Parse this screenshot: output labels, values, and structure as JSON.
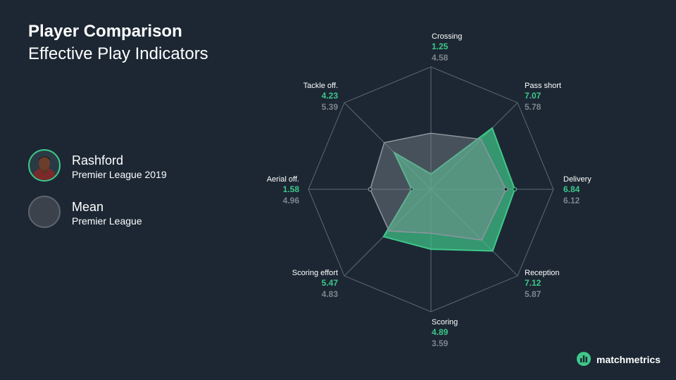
{
  "title": "Player Comparison",
  "subtitle": "Effective Play Indicators",
  "legend": {
    "player": {
      "name": "Rashford",
      "desc": "Premier League 2019"
    },
    "mean": {
      "name": "Mean",
      "desc": "Premier League"
    }
  },
  "brand": {
    "name": "matchmetrics",
    "icon": "matchmetrics-logo-icon"
  },
  "colors": {
    "player": "#3fc78a",
    "mean": "#8a9099",
    "background": "#1c2733"
  },
  "chart_data": {
    "type": "radar",
    "title": "Effective Play Indicators",
    "axes": [
      "Crossing",
      "Pass short",
      "Delivery",
      "Reception",
      "Scoring",
      "Scoring effort",
      "Aerial off.",
      "Tackle off."
    ],
    "range": [
      0,
      10
    ],
    "series": [
      {
        "name": "Rashford",
        "values": [
          1.25,
          7.07,
          6.84,
          7.12,
          4.89,
          5.47,
          1.58,
          4.23
        ]
      },
      {
        "name": "Mean",
        "values": [
          4.58,
          5.78,
          6.12,
          5.87,
          3.59,
          4.83,
          4.96,
          5.39
        ]
      }
    ],
    "value_labels": {
      "player": [
        "1.25",
        "7.07",
        "6.84",
        "7.12",
        "4.89",
        "5.47",
        "1.58",
        "4.23"
      ],
      "mean": [
        "4.58",
        "5.78",
        "6.12",
        "5.87",
        "3.59",
        "4.83",
        "4.96",
        "5.39"
      ]
    }
  }
}
